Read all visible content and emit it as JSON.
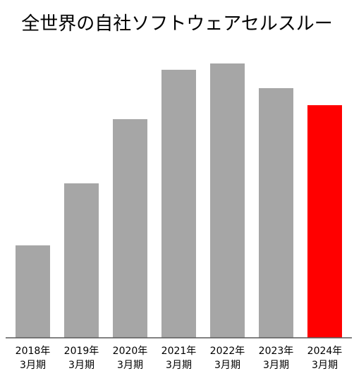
{
  "chart_data": {
    "type": "bar",
    "title": "全世界の自社ソフトウェアセルスルー",
    "xlabel": "",
    "ylabel": "",
    "categories": [
      "2018年3月期",
      "2019年3月期",
      "2020年3月期",
      "2021年3月期",
      "2022年3月期",
      "2023年3月期",
      "2024年3月期"
    ],
    "values": [
      33.7,
      56.3,
      79.7,
      97.7,
      100,
      91.0,
      84.8
    ],
    "value_scale": "relative index (no axis printed; tallest bar = 100)",
    "ylim": [
      0,
      100
    ],
    "grid": false,
    "legend": "none",
    "bar_color": "#a6a6a6",
    "highlight_color": "#ff0000",
    "highlight_index": 6,
    "axis_color": "#595959"
  }
}
